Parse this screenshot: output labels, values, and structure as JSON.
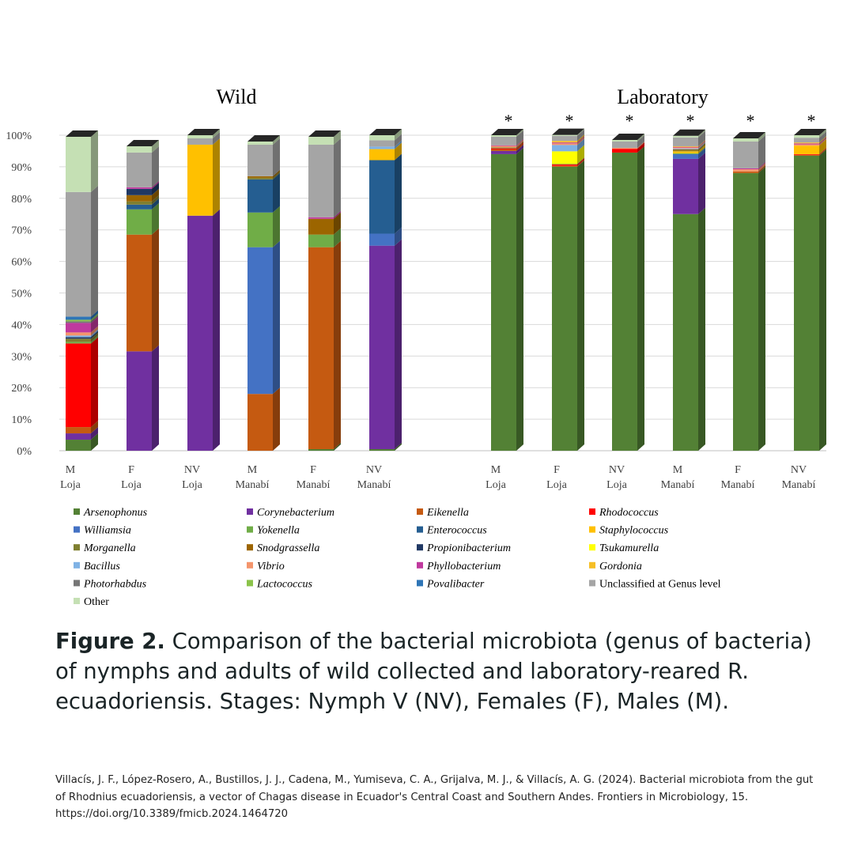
{
  "chart_data": {
    "type": "bar",
    "stacked": true,
    "percent_scale": true,
    "ylim": [
      0,
      100
    ],
    "yticks": [
      "0%",
      "10%",
      "20%",
      "30%",
      "40%",
      "50%",
      "60%",
      "70%",
      "80%",
      "90%",
      "100%"
    ],
    "groups": [
      {
        "title": "Wild",
        "categories": [
          {
            "line1": "M",
            "line2": "Loja",
            "sig": ""
          },
          {
            "line1": "F",
            "line2": "Loja",
            "sig": ""
          },
          {
            "line1": "NV",
            "line2": "Loja",
            "sig": ""
          },
          {
            "line1": "M",
            "line2": "Manabí",
            "sig": ""
          },
          {
            "line1": "F",
            "line2": "Manabí",
            "sig": ""
          },
          {
            "line1": "NV",
            "line2": "Manabí",
            "sig": ""
          }
        ]
      },
      {
        "title": "Laboratory",
        "categories": [
          {
            "line1": "M",
            "line2": "Loja",
            "sig": "*"
          },
          {
            "line1": "F",
            "line2": "Loja",
            "sig": "*"
          },
          {
            "line1": "NV",
            "line2": "Loja",
            "sig": "*"
          },
          {
            "line1": "M",
            "line2": "Manabí",
            "sig": "*"
          },
          {
            "line1": "F",
            "line2": "Manabí",
            "sig": "*"
          },
          {
            "line1": "NV",
            "line2": "Manabí",
            "sig": "*"
          }
        ]
      }
    ],
    "series": [
      {
        "name": "Arsenophonus",
        "italic": true,
        "color": "#538135",
        "values": [
          3.5,
          0,
          0,
          0,
          0.5,
          0.5,
          94,
          90,
          94.5,
          75,
          88,
          93.5
        ]
      },
      {
        "name": "Corynebacterium",
        "italic": true,
        "color": "#7030a0",
        "values": [
          2,
          31.5,
          74.5,
          0,
          0,
          64.5,
          1,
          0,
          0,
          17.5,
          0,
          0
        ]
      },
      {
        "name": "Eikenella",
        "italic": true,
        "color": "#c55a11",
        "values": [
          2,
          37,
          0,
          18,
          64,
          0,
          0.5,
          0.3,
          0,
          0,
          0.5,
          0.3
        ]
      },
      {
        "name": "Rhodococcus",
        "italic": true,
        "color": "#ff0000",
        "values": [
          26.5,
          0,
          0,
          0,
          0,
          0,
          0.3,
          0.4,
          1.2,
          0,
          0,
          0.2
        ]
      },
      {
        "name": "Williamsia",
        "italic": true,
        "color": "#4472c4",
        "values": [
          0,
          0,
          0,
          46.5,
          0,
          3.8,
          0,
          0,
          0,
          1.5,
          0,
          0
        ]
      },
      {
        "name": "Yokenella",
        "italic": true,
        "color": "#70ad47",
        "values": [
          0.5,
          8,
          0,
          11,
          4,
          0,
          0,
          0,
          0,
          0.3,
          0,
          0
        ]
      },
      {
        "name": "Enterococcus",
        "italic": true,
        "color": "#255e91",
        "values": [
          0,
          1.5,
          0,
          10.5,
          0,
          23.3,
          0,
          0,
          0,
          0,
          0,
          0
        ]
      },
      {
        "name": "Staphylococcus",
        "italic": true,
        "color": "#ffc000",
        "values": [
          0,
          0,
          22.5,
          0,
          0,
          3.5,
          0,
          0,
          0,
          0.6,
          0,
          2.7
        ]
      },
      {
        "name": "Morganella",
        "italic": true,
        "color": "#7f7f30",
        "values": [
          1,
          1,
          0,
          0.5,
          0,
          0,
          0.3,
          0.2,
          0,
          0.3,
          0,
          0
        ]
      },
      {
        "name": "Snodgrassella",
        "italic": true,
        "color": "#9c6500",
        "values": [
          0,
          2,
          0,
          0.5,
          5,
          0,
          0,
          0,
          0,
          0.3,
          0,
          0
        ]
      },
      {
        "name": "Propionibacterium",
        "italic": true,
        "color": "#203864",
        "values": [
          0.5,
          2,
          0,
          0,
          0,
          0,
          0,
          0,
          0,
          0,
          0,
          0
        ]
      },
      {
        "name": "Tsukamurella",
        "italic": true,
        "color": "#ffff00",
        "values": [
          0,
          0,
          0,
          0,
          0,
          0,
          0,
          4,
          0,
          0,
          0,
          0
        ]
      },
      {
        "name": "Bacillus",
        "italic": true,
        "color": "#7fb2e5",
        "values": [
          0.5,
          0,
          0,
          0,
          0,
          0.8,
          0,
          2,
          0,
          0.3,
          0,
          0
        ]
      },
      {
        "name": "Vibrio",
        "italic": true,
        "color": "#f4956c",
        "values": [
          1,
          0,
          0,
          0,
          0,
          0,
          0.5,
          0.5,
          0.3,
          0.3,
          0.7,
          0.4
        ]
      },
      {
        "name": "Phyllobacterium",
        "italic": true,
        "color": "#c0399e",
        "values": [
          3,
          0.5,
          0,
          0,
          0.5,
          0,
          0.2,
          0.3,
          0,
          0.2,
          0.3,
          0.3
        ]
      },
      {
        "name": "Gordonia",
        "italic": true,
        "color": "#f6bf26",
        "values": [
          0,
          0,
          0,
          0,
          0,
          0,
          0,
          0.5,
          0,
          0.2,
          0,
          0.3
        ]
      },
      {
        "name": "Photorhabdus",
        "italic": true,
        "color": "#767676",
        "values": [
          0.5,
          0,
          0,
          0,
          0,
          0,
          0,
          0,
          0,
          0,
          0,
          0
        ]
      },
      {
        "name": "Lactococcus",
        "italic": true,
        "color": "#8bc34a",
        "values": [
          0.5,
          0,
          0,
          0,
          0,
          0,
          0,
          0,
          0,
          0,
          0,
          0
        ]
      },
      {
        "name": "Povalibacter",
        "italic": true,
        "color": "#2e75b6",
        "values": [
          1,
          0,
          0,
          0,
          0,
          0,
          0,
          0,
          0,
          0,
          0,
          0
        ]
      },
      {
        "name": "Unclassified at Genus level",
        "italic": false,
        "color": "#a5a5a5",
        "values": [
          39.5,
          11,
          2,
          10,
          23,
          2,
          2.7,
          1.6,
          2,
          2.8,
          8.5,
          1.5
        ]
      },
      {
        "name": "Other",
        "italic": false,
        "color": "#c5e0b4",
        "values": [
          17.5,
          2,
          1,
          1,
          2.5,
          1.6,
          0.5,
          0.3,
          0.5,
          0.5,
          1,
          0.8
        ]
      }
    ]
  },
  "caption": {
    "lead": "Figure 2.",
    "text": " Comparison of the bacterial microbiota (genus of bacteria) of nymphs and adults of wild collected and laboratory-reared R. ecuadoriensis. Stages: Nymph V (NV), Females (F), Males (M)."
  },
  "citation": "Villacís, J. F., López-Rosero, A., Bustillos, J. J., Cadena, M., Yumiseva, C. A., Grijalva, M. J., & Villacís, A. G. (2024). Bacterial microbiota from the gut of Rhodnius ecuadoriensis, a vector of Chagas disease in Ecuador's Central Coast and Southern Andes. Frontiers in Microbiology, 15. https://doi.org/10.3389/fmicb.2024.1464720"
}
